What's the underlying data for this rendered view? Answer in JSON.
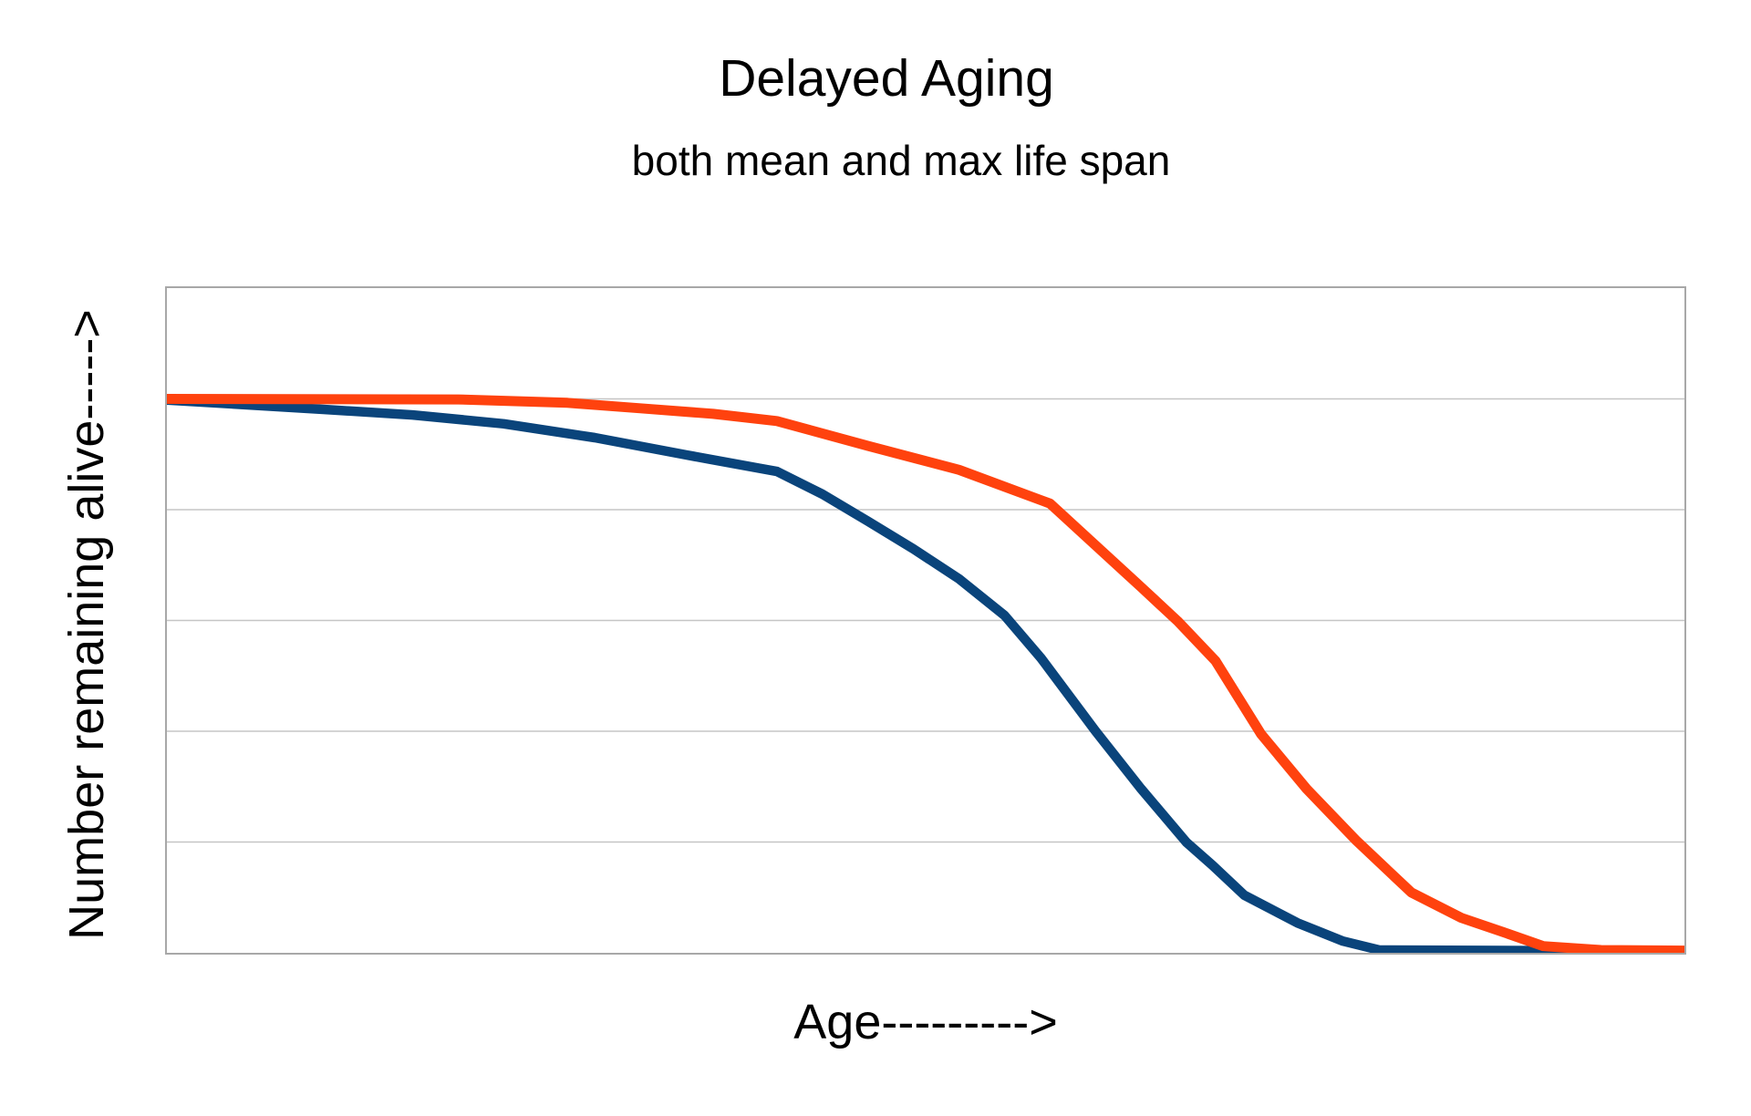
{
  "header": {
    "title": "Delayed Aging",
    "subtitle": "both mean and max life span"
  },
  "axes": {
    "y_label": "Number remaining alive----->",
    "x_label": "Age--------->"
  },
  "colors": {
    "blue_curve": "#0a447b",
    "orange_curve": "#ff420e",
    "gridline": "#c5c5c5",
    "plot_border": "#a8a8a8",
    "background": "#ffffff",
    "text": "#000000"
  },
  "chart_data": {
    "type": "line",
    "title": "Delayed Aging",
    "subtitle": "both mean and max life span",
    "xlabel": "Age--------->",
    "ylabel": "Number remaining alive----->",
    "x_axis": {
      "range_percent_of_width": [
        0,
        100
      ],
      "tick_labels": false
    },
    "y_axis": {
      "range": [
        0,
        1.2
      ],
      "gridline_step": 0.2,
      "tick_labels": false
    },
    "grid": "horizontal-only",
    "legend": "none",
    "note": "Both curves start at a surviving fraction of 1.0 (first gridline below top) and fall to 0 at the bottom axis; the orange curve is shifted right of the blue one (greater mean and max life span). X values are percent of axis width (no numeric age labels shown).",
    "series": [
      {
        "name": "baseline survival curve (blue)",
        "color": "#0a447b",
        "stroke_width": 10.5,
        "points": [
          [
            0,
            0.998
          ],
          [
            10.3,
            0.981
          ],
          [
            16.2,
            0.971
          ],
          [
            22.2,
            0.955
          ],
          [
            28.2,
            0.93
          ],
          [
            34.2,
            0.899
          ],
          [
            40.2,
            0.869
          ],
          [
            43.2,
            0.828
          ],
          [
            46.2,
            0.779
          ],
          [
            49.2,
            0.729
          ],
          [
            52.2,
            0.675
          ],
          [
            55.2,
            0.609
          ],
          [
            57.6,
            0.532
          ],
          [
            61.2,
            0.4
          ],
          [
            64.2,
            0.296
          ],
          [
            67.2,
            0.199
          ],
          [
            68.9,
            0.158
          ],
          [
            71.0,
            0.104
          ],
          [
            74.5,
            0.054
          ],
          [
            77.5,
            0.021
          ],
          [
            79.9,
            0.005
          ],
          [
            100,
            0.003
          ]
        ]
      },
      {
        "name": "delayed aging survival curve (orange)",
        "color": "#ff420e",
        "stroke_width": 11,
        "points": [
          [
            0,
            1.0
          ],
          [
            19.2,
            0.999
          ],
          [
            26.4,
            0.993
          ],
          [
            31.2,
            0.983
          ],
          [
            36.0,
            0.973
          ],
          [
            40.2,
            0.96
          ],
          [
            46.2,
            0.915
          ],
          [
            52.2,
            0.872
          ],
          [
            58.2,
            0.811
          ],
          [
            64.2,
            0.66
          ],
          [
            66.6,
            0.599
          ],
          [
            69.1,
            0.527
          ],
          [
            72.1,
            0.395
          ],
          [
            75.1,
            0.296
          ],
          [
            78.4,
            0.202
          ],
          [
            82.0,
            0.109
          ],
          [
            85.3,
            0.063
          ],
          [
            88.3,
            0.035
          ],
          [
            90.7,
            0.012
          ],
          [
            94.5,
            0.005
          ],
          [
            100,
            0.004
          ]
        ]
      }
    ]
  }
}
